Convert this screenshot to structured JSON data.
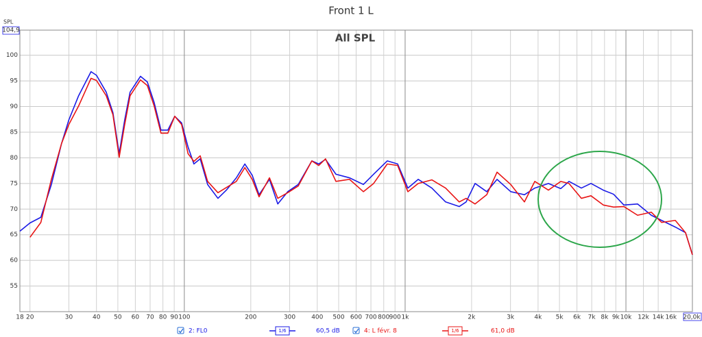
{
  "chart_data": {
    "type": "line",
    "title": "Front 1 L",
    "subtitle": "All SPL",
    "y_label": "SPL",
    "x_log": true,
    "grid": true,
    "xlim": [
      18,
      20000
    ],
    "ylim": [
      50,
      104.9
    ],
    "xticks": [
      18,
      20,
      30,
      40,
      50,
      60,
      70,
      80,
      90,
      100,
      200,
      300,
      400,
      500,
      600,
      700,
      800,
      900,
      {
        "value": 1000,
        "label": "1k"
      },
      {
        "value": 2000,
        "label": "2k"
      },
      {
        "value": 3000,
        "label": "3k"
      },
      {
        "value": 4000,
        "label": "4k"
      },
      {
        "value": 5000,
        "label": "5k"
      },
      {
        "value": 6000,
        "label": "6k"
      },
      {
        "value": 7000,
        "label": "7k"
      },
      {
        "value": 8000,
        "label": "8k"
      },
      {
        "value": 9000,
        "label": "9k"
      },
      {
        "value": 10000,
        "label": "10k"
      },
      {
        "value": 12000,
        "label": "12k"
      },
      {
        "value": 14000,
        "label": "14k"
      },
      {
        "value": 16000,
        "label": "16k"
      },
      {
        "value": 20000,
        "label": "20,0k"
      }
    ],
    "yticks": [
      55,
      60,
      65,
      70,
      75,
      80,
      85,
      90,
      95,
      100,
      {
        "value": 104.9,
        "label": "104,9"
      }
    ],
    "x": [
      18,
      20,
      22.4,
      25,
      27.8,
      30,
      33.2,
      37.8,
      40,
      44.3,
      47.5,
      50.7,
      53.7,
      56.8,
      63.3,
      68,
      73,
      78.4,
      84.2,
      90.5,
      97.2,
      104,
      110.5,
      118,
      127.5,
      142,
      155,
      172,
      188,
      203,
      218,
      243,
      265,
      294,
      328,
      378,
      406,
      436,
      486,
      560,
      647,
      720,
      830,
      925,
      1029,
      1146,
      1321,
      1525,
      1758,
      1889,
      2074,
      2342,
      2608,
      3008,
      3470,
      3865,
      4456,
      5070,
      5523,
      6283,
      6944,
      7896,
      8790,
      9788,
      11290,
      13030,
      14504,
      16730,
      18620,
      20000
    ],
    "series": [
      {
        "name": "2: FL0",
        "color": "#1a1ae6",
        "smoothing": "1/6",
        "level": "60,5 dB",
        "values": [
          65.7,
          67.3,
          68.4,
          74.8,
          82.8,
          87.4,
          92.1,
          96.8,
          96.1,
          92.8,
          88.8,
          80.8,
          87.4,
          92.8,
          95.9,
          94.8,
          90.8,
          85.4,
          85.4,
          88.1,
          86.8,
          82.1,
          78.8,
          79.8,
          74.8,
          72.1,
          73.7,
          76.1,
          78.8,
          76.6,
          72.8,
          75.8,
          71,
          73.4,
          74.8,
          79.4,
          78.8,
          79.7,
          76.8,
          76.1,
          74.8,
          76.8,
          79.4,
          78.8,
          74.1,
          75.8,
          74.1,
          71.4,
          70.5,
          71.4,
          75,
          73.4,
          75.8,
          73.4,
          72.8,
          74.1,
          75,
          74,
          75.4,
          74.1,
          75,
          73.7,
          72.9,
          70.8,
          71,
          68.8,
          67.8,
          66.5,
          65.4,
          61.1
        ]
      },
      {
        "name": "4: L févr. 8",
        "color": "#e81414",
        "smoothing": "1/6",
        "level": "61,0 dB",
        "values": [
          null,
          64.5,
          67.4,
          75.8,
          82.8,
          86.5,
          90.1,
          95.5,
          95.1,
          92.1,
          88.4,
          80.1,
          86.5,
          92.1,
          95.2,
          94.1,
          90.1,
          84.8,
          84.8,
          88.1,
          86.5,
          80.8,
          79.3,
          80.4,
          75.4,
          73.2,
          74.2,
          75.4,
          78.1,
          75.8,
          72.4,
          76.1,
          72.1,
          73.2,
          74.5,
          79.4,
          78.5,
          79.8,
          75.4,
          75.8,
          73.4,
          75,
          78.8,
          78.5,
          73.4,
          75,
          75.7,
          74.1,
          71.4,
          72.1,
          71,
          72.8,
          77.2,
          74.8,
          71.4,
          75.4,
          73.7,
          75.4,
          75,
          72.1,
          72.6,
          70.8,
          70.4,
          70.5,
          68.8,
          69.4,
          67.4,
          67.8,
          65.4,
          61.1
        ]
      }
    ]
  }
}
